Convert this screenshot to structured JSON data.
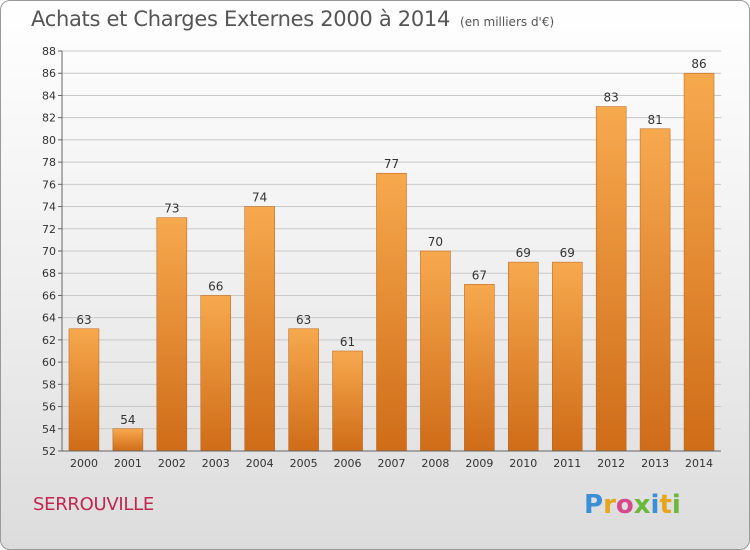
{
  "header": {
    "title": "Achats et Charges Externes 2000 à 2014",
    "unit": "(en milliers d'€)"
  },
  "footer": {
    "commune": "SERROUVILLE",
    "logo_letters": [
      "P",
      "r",
      "o",
      "x",
      "i",
      "t",
      "i"
    ],
    "logo_colors": [
      "#3a8fd6",
      "#e5a51d",
      "#d64a8c",
      "#6cb83a",
      "#3a8fd6",
      "#e5a51d",
      "#6cb83a"
    ]
  },
  "colors": {
    "bar_light": "#f7a94e",
    "bar_dark": "#cf6c18",
    "grid": "#c8c8c8"
  },
  "chart_data": {
    "type": "bar",
    "title": "Achats et Charges Externes 2000 à 2014",
    "subtitle": "(en milliers d'€)",
    "categories": [
      "2000",
      "2001",
      "2002",
      "2003",
      "2004",
      "2005",
      "2006",
      "2007",
      "2008",
      "2009",
      "2010",
      "2011",
      "2012",
      "2013",
      "2014"
    ],
    "values": [
      63,
      54,
      73,
      66,
      74,
      63,
      61,
      77,
      70,
      67,
      69,
      69,
      83,
      81,
      86
    ],
    "ylim": [
      52,
      88
    ],
    "yticks": [
      52,
      54,
      56,
      58,
      60,
      62,
      64,
      66,
      68,
      70,
      72,
      74,
      76,
      78,
      80,
      82,
      84,
      86,
      88
    ],
    "grid": true,
    "legend": "none"
  }
}
